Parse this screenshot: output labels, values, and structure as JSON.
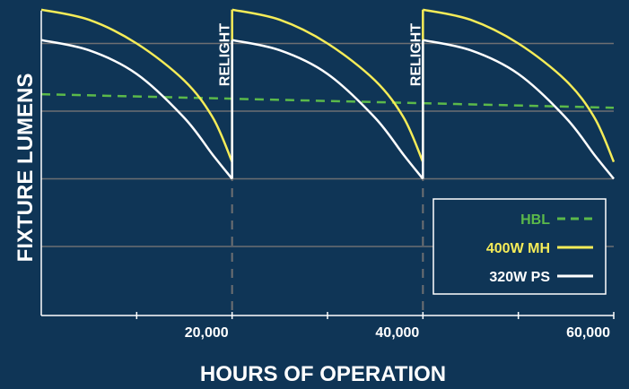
{
  "chart_data": {
    "type": "line",
    "title": "",
    "xlabel": "HOURS OF OPERATION",
    "ylabel": "FIXTURE LUMENS",
    "xlim": [
      0,
      60000
    ],
    "ylim": [
      0,
      100
    ],
    "x_ticks": [
      20000,
      40000,
      60000
    ],
    "x_tick_labels": [
      "20,000",
      "40,000",
      "60,000"
    ],
    "y_ticks": [
      20,
      40,
      60,
      80,
      100
    ],
    "y_tick_labels": [],
    "grid": true,
    "legend_position": "bottom-right",
    "relight": {
      "label": "RELIGHT",
      "x": [
        20000,
        40000
      ]
    },
    "series": [
      {
        "name": "HBL",
        "color": "#5bb94a",
        "style": "dashed",
        "x": [
          0,
          60000
        ],
        "y": [
          65,
          61
        ]
      },
      {
        "name": "400W MH",
        "color": "#f5ec58",
        "style": "solid",
        "x": [
          0,
          5000,
          10000,
          15000,
          18000,
          20000,
          20000,
          25000,
          30000,
          35000,
          38000,
          40000,
          40000,
          45000,
          50000,
          55000,
          58000,
          60000
        ],
        "y": [
          90,
          87,
          80,
          69,
          58,
          45,
          90,
          87,
          80,
          69,
          58,
          45,
          90,
          87,
          80,
          69,
          58,
          45
        ]
      },
      {
        "name": "320W PS",
        "color": "#ffffff",
        "style": "solid",
        "x": [
          0,
          5000,
          10000,
          15000,
          18000,
          20000,
          20000,
          25000,
          30000,
          35000,
          38000,
          40000,
          40000,
          45000,
          50000,
          55000,
          58000,
          60000
        ],
        "y": [
          81,
          78,
          71,
          58,
          47,
          40,
          81,
          78,
          71,
          58,
          47,
          40,
          81,
          78,
          71,
          58,
          47,
          40
        ]
      }
    ]
  }
}
